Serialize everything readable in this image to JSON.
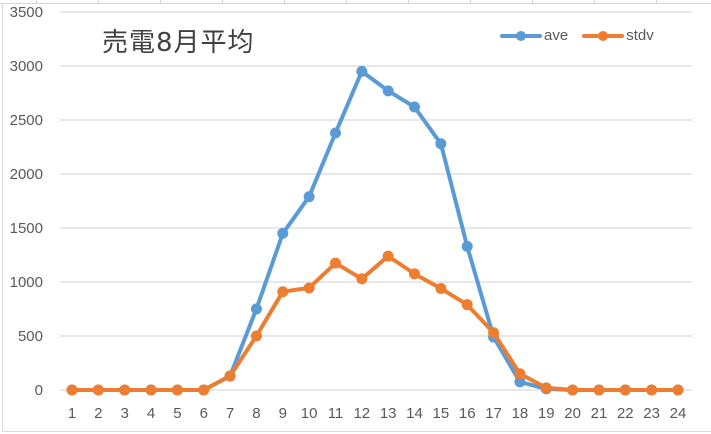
{
  "chart_data": {
    "type": "line",
    "title": "売電8月平均",
    "xlabel": "",
    "ylabel": "",
    "categories": [
      "1",
      "2",
      "3",
      "4",
      "5",
      "6",
      "7",
      "8",
      "9",
      "10",
      "11",
      "12",
      "13",
      "14",
      "15",
      "16",
      "17",
      "18",
      "19",
      "20",
      "21",
      "22",
      "23",
      "24"
    ],
    "series": [
      {
        "name": "ave",
        "color": "#5b9bd5",
        "values": [
          0,
          0,
          0,
          0,
          0,
          0,
          130,
          750,
          1450,
          1790,
          2380,
          2950,
          2770,
          2620,
          2280,
          1330,
          490,
          75,
          10,
          0,
          0,
          0,
          0,
          0
        ]
      },
      {
        "name": "stdv",
        "color": "#ed7d31",
        "values": [
          0,
          0,
          0,
          0,
          0,
          0,
          130,
          500,
          910,
          945,
          1175,
          1030,
          1240,
          1075,
          940,
          790,
          530,
          150,
          20,
          0,
          0,
          0,
          0,
          0
        ]
      }
    ],
    "ylim": [
      0,
      3500
    ],
    "yticks": [
      0,
      500,
      1000,
      1500,
      2000,
      2500,
      3000,
      3500
    ],
    "grid": true,
    "legend_position": "top-right",
    "gridline_color": "#d9d9d9",
    "axis_label_color": "#595959"
  }
}
